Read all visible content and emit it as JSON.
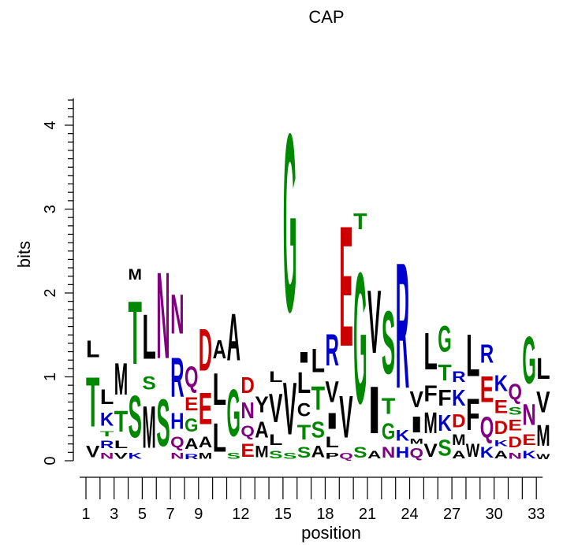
{
  "chart_data": {
    "type": "sequence-logo",
    "title": "CAP",
    "xlabel": "position",
    "ylabel": "bits",
    "ylim": [
      0,
      4.32
    ],
    "yticks": [
      0,
      1,
      2,
      3,
      4
    ],
    "positions": [
      1,
      2,
      3,
      4,
      5,
      6,
      7,
      8,
      9,
      10,
      11,
      12,
      13,
      14,
      15,
      16,
      17,
      18,
      19,
      20,
      21,
      22,
      23,
      24,
      25,
      26,
      27,
      28,
      29,
      30,
      31,
      32,
      33
    ],
    "x_tick_labels": [
      "1",
      "3",
      "5",
      "7",
      "9",
      "12",
      "15",
      "18",
      "21",
      "24",
      "27",
      "30",
      "33"
    ],
    "x_tick_label_positions": [
      1,
      3,
      5,
      7,
      9,
      12,
      15,
      18,
      21,
      24,
      27,
      30,
      33
    ],
    "colors": {
      "hydrophobic": "#000000",
      "acidic": "#cc0000",
      "basic": "#0000cc",
      "polar": "#008800",
      "amide": "#800080"
    },
    "stacks": [
      {
        "pos": 1,
        "letters": [
          [
            "V",
            0.22
          ],
          [
            "T",
            0.95
          ],
          [
            "L",
            0.32
          ]
        ]
      },
      {
        "pos": 2,
        "letters": [
          [
            "N",
            0.12
          ],
          [
            "R",
            0.15
          ],
          [
            "T",
            0.1
          ],
          [
            "K",
            0.25
          ],
          [
            "L",
            0.28
          ]
        ]
      },
      {
        "pos": 3,
        "letters": [
          [
            "V",
            0.12
          ],
          [
            "L",
            0.15
          ],
          [
            "T",
            0.4
          ],
          [
            "M",
            0.6
          ]
        ]
      },
      {
        "pos": 4,
        "letters": [
          [
            "K",
            0.12
          ],
          [
            "S",
            0.8
          ],
          [
            "T",
            1.2
          ],
          [
            "M",
            0.2
          ]
        ]
      },
      {
        "pos": 5,
        "letters": [
          [
            "M",
            0.8
          ],
          [
            "S",
            0.25
          ],
          [
            "L",
            0.85
          ]
        ]
      },
      {
        "pos": 6,
        "letters": [
          [
            "S",
            0.9
          ],
          [
            "N",
            1.65
          ]
        ]
      },
      {
        "pos": 7,
        "letters": [
          [
            "N",
            0.12
          ],
          [
            "Q",
            0.2
          ],
          [
            "H",
            0.3
          ],
          [
            "R",
            0.75
          ],
          [
            "N",
            0.75
          ]
        ]
      },
      {
        "pos": 8,
        "letters": [
          [
            "R",
            0.1
          ],
          [
            "A",
            0.2
          ],
          [
            "G",
            0.25
          ],
          [
            "E",
            0.25
          ],
          [
            "Q",
            0.4
          ]
        ]
      },
      {
        "pos": 9,
        "letters": [
          [
            "M",
            0.12
          ],
          [
            "A",
            0.2
          ],
          [
            "E",
            0.6
          ],
          [
            "D",
            0.8
          ]
        ]
      },
      {
        "pos": 10,
        "letters": [
          [
            "L",
            0.55
          ],
          [
            "L",
            0.6
          ],
          [
            "A",
            0.35
          ]
        ]
      },
      {
        "pos": 11,
        "letters": [
          [
            "S",
            0.12
          ],
          [
            "G",
            0.9
          ],
          [
            "A",
            0.9
          ]
        ]
      },
      {
        "pos": 12,
        "letters": [
          [
            "E",
            0.25
          ],
          [
            "Q",
            0.2
          ],
          [
            "N",
            0.3
          ],
          [
            "D",
            0.3
          ]
        ]
      },
      {
        "pos": 13,
        "letters": [
          [
            "M",
            0.22
          ],
          [
            "A",
            0.3
          ],
          [
            "Y",
            0.3
          ]
        ]
      },
      {
        "pos": 14,
        "letters": [
          [
            "S",
            0.15
          ],
          [
            "L",
            0.2
          ],
          [
            "V",
            0.55
          ],
          [
            "L",
            0.2
          ]
        ]
      },
      {
        "pos": 15,
        "letters": [
          [
            "S",
            0.12
          ],
          [
            "V",
            1.0
          ],
          [
            "G",
            3.4
          ]
        ]
      },
      {
        "pos": 16,
        "letters": [
          [
            "S",
            0.2
          ],
          [
            "T",
            0.28
          ],
          [
            "C",
            0.25
          ],
          [
            "L",
            0.4
          ],
          [
            "I",
            0.2
          ]
        ]
      },
      {
        "pos": 17,
        "letters": [
          [
            "A",
            0.22
          ],
          [
            "S",
            0.3
          ],
          [
            "T",
            0.45
          ],
          [
            "L",
            0.45
          ]
        ]
      },
      {
        "pos": 18,
        "letters": [
          [
            "P",
            0.12
          ],
          [
            "L",
            0.2
          ],
          [
            "I",
            0.3
          ],
          [
            "V",
            0.4
          ],
          [
            "R",
            0.6
          ]
        ]
      },
      {
        "pos": 19,
        "letters": [
          [
            "Q",
            0.12
          ],
          [
            "V",
            0.8
          ],
          [
            "E",
            2.3
          ]
        ]
      },
      {
        "pos": 20,
        "letters": [
          [
            "S",
            0.2
          ],
          [
            "G",
            2.5
          ],
          [
            "T",
            0.3
          ]
        ]
      },
      {
        "pos": 21,
        "letters": [
          [
            "A",
            0.15
          ],
          [
            "I",
            0.9
          ],
          [
            "V",
            1.2
          ]
        ]
      },
      {
        "pos": 22,
        "letters": [
          [
            "N",
            0.2
          ],
          [
            "G",
            0.3
          ],
          [
            "T",
            0.3
          ],
          [
            "S",
            1.2
          ]
        ]
      },
      {
        "pos": 23,
        "letters": [
          [
            "H",
            0.2
          ],
          [
            "K",
            0.2
          ],
          [
            "R",
            2.4
          ]
        ]
      },
      {
        "pos": 24,
        "letters": [
          [
            "Q",
            0.18
          ],
          [
            "M",
            0.1
          ],
          [
            "I",
            0.3
          ],
          [
            "V",
            0.3
          ]
        ]
      },
      {
        "pos": 25,
        "letters": [
          [
            "V",
            0.25
          ],
          [
            "M",
            0.4
          ],
          [
            "F",
            0.3
          ],
          [
            "L",
            0.7
          ]
        ]
      },
      {
        "pos": 26,
        "letters": [
          [
            "S",
            0.3
          ],
          [
            "K",
            0.3
          ],
          [
            "F",
            0.3
          ],
          [
            "T",
            0.3
          ],
          [
            "G",
            0.5
          ]
        ]
      },
      {
        "pos": 27,
        "letters": [
          [
            "A",
            0.15
          ],
          [
            "M",
            0.2
          ],
          [
            "D",
            0.25
          ],
          [
            "K",
            0.3
          ],
          [
            "R",
            0.2
          ]
        ]
      },
      {
        "pos": 28,
        "letters": [
          [
            "W",
            0.25
          ],
          [
            "F",
            0.6
          ],
          [
            "L",
            0.8
          ]
        ]
      },
      {
        "pos": 29,
        "letters": [
          [
            "K",
            0.2
          ],
          [
            "Q",
            0.4
          ],
          [
            "E",
            0.5
          ],
          [
            "R",
            0.35
          ]
        ]
      },
      {
        "pos": 30,
        "letters": [
          [
            "A",
            0.15
          ],
          [
            "K",
            0.12
          ],
          [
            "D",
            0.25
          ],
          [
            "E",
            0.25
          ],
          [
            "K",
            0.3
          ]
        ]
      },
      {
        "pos": 31,
        "letters": [
          [
            "N",
            0.12
          ],
          [
            "D",
            0.2
          ],
          [
            "E",
            0.2
          ],
          [
            "S",
            0.15
          ],
          [
            "Q",
            0.3
          ]
        ]
      },
      {
        "pos": 32,
        "letters": [
          [
            "K",
            0.15
          ],
          [
            "E",
            0.2
          ],
          [
            "N",
            0.4
          ],
          [
            "G",
            0.9
          ]
        ]
      },
      {
        "pos": 33,
        "letters": [
          [
            "W",
            0.1
          ],
          [
            "M",
            0.4
          ],
          [
            "V",
            0.4
          ],
          [
            "L",
            0.4
          ]
        ]
      }
    ]
  }
}
